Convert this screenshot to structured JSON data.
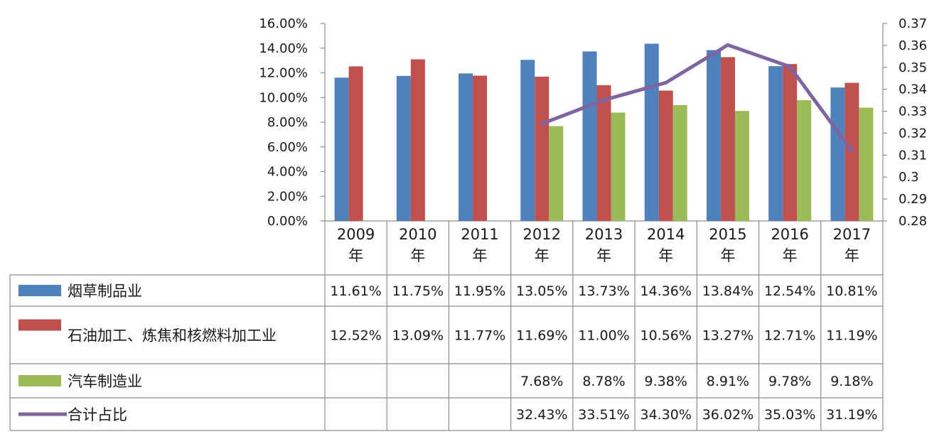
{
  "chart_data": {
    "type": "bar",
    "combo": "bar+line on secondary axis, with data table",
    "categories": [
      "2009年",
      "2010年",
      "2011年",
      "2012年",
      "2013年",
      "2014年",
      "2015年",
      "2016年",
      "2017年"
    ],
    "series": [
      {
        "name": "烟草制品业",
        "type": "bar",
        "axis": "left",
        "color": "#4F81BD",
        "values": [
          11.61,
          11.75,
          11.95,
          13.05,
          13.73,
          14.36,
          13.84,
          12.54,
          10.81
        ],
        "labels": [
          "11.61%",
          "11.75%",
          "11.95%",
          "13.05%",
          "13.73%",
          "14.36%",
          "13.84%",
          "12.54%",
          "10.81%"
        ]
      },
      {
        "name": "石油加工、炼焦和核燃料加工业",
        "type": "bar",
        "axis": "left",
        "color": "#C0504D",
        "values": [
          12.52,
          13.09,
          11.77,
          11.69,
          11.0,
          10.56,
          13.27,
          12.71,
          11.19
        ],
        "labels": [
          "12.52%",
          "13.09%",
          "11.77%",
          "11.69%",
          "11.00%",
          "10.56%",
          "13.27%",
          "12.71%",
          "11.19%"
        ]
      },
      {
        "name": "汽车制造业",
        "type": "bar",
        "axis": "left",
        "color": "#9BBB59",
        "values": [
          null,
          null,
          null,
          7.68,
          8.78,
          9.38,
          8.91,
          9.78,
          9.18
        ],
        "labels": [
          "",
          "",
          "",
          "7.68%",
          "8.78%",
          "9.38%",
          "8.91%",
          "9.78%",
          "9.18%"
        ]
      },
      {
        "name": "合计占比",
        "type": "line",
        "axis": "right",
        "color": "#8064A2",
        "values": [
          null,
          null,
          null,
          0.3243,
          0.3351,
          0.343,
          0.3602,
          0.3503,
          0.3119
        ],
        "labels": [
          "",
          "",
          "",
          "32.43%",
          "33.51%",
          "34.30%",
          "36.02%",
          "35.03%",
          "31.19%"
        ]
      }
    ],
    "y_left": {
      "min": 0,
      "max": 16,
      "step": 2,
      "tick_labels": [
        "0.00%",
        "2.00%",
        "4.00%",
        "6.00%",
        "8.00%",
        "10.00%",
        "12.00%",
        "14.00%",
        "16.00%"
      ]
    },
    "y_right": {
      "min": 0.28,
      "max": 0.37,
      "step": 0.01,
      "tick_labels": [
        "0.28",
        "0.29",
        "0.3",
        "0.31",
        "0.32",
        "0.33",
        "0.34",
        "0.35",
        "0.36",
        "0.37"
      ]
    },
    "grid": false,
    "legend": "data-table-left"
  }
}
